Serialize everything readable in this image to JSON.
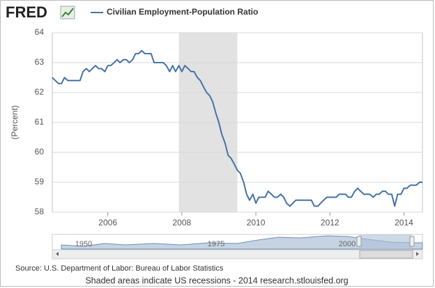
{
  "chart_data": {
    "type": "line",
    "logo": "FRED",
    "ylabel": "(Percent)",
    "source": "Source: U.S. Department of Labor: Bureau of Labor Statistics",
    "footer": "Shaded areas indicate US recessions - 2014 research.stlouisfed.org",
    "navigator_labels": [
      "1950",
      "1975",
      "2000"
    ],
    "xlim": [
      2004.5,
      2014.5
    ],
    "xticks": [
      2006,
      2008,
      2010,
      2012,
      2014
    ],
    "ylim": [
      58,
      64
    ],
    "yticks": [
      58,
      59,
      60,
      61,
      62,
      63,
      64
    ],
    "grid": true,
    "recessions": [
      {
        "start": 2007.92,
        "end": 2009.5
      }
    ],
    "x": [
      2004.5,
      2004.58,
      2004.67,
      2004.75,
      2004.83,
      2004.92,
      2005,
      2005.08,
      2005.17,
      2005.25,
      2005.33,
      2005.42,
      2005.5,
      2005.58,
      2005.67,
      2005.75,
      2005.83,
      2005.92,
      2006,
      2006.08,
      2006.17,
      2006.25,
      2006.33,
      2006.42,
      2006.5,
      2006.58,
      2006.67,
      2006.75,
      2006.83,
      2006.92,
      2007,
      2007.08,
      2007.17,
      2007.25,
      2007.33,
      2007.42,
      2007.5,
      2007.58,
      2007.67,
      2007.75,
      2007.83,
      2007.92,
      2008,
      2008.08,
      2008.17,
      2008.25,
      2008.33,
      2008.42,
      2008.5,
      2008.58,
      2008.67,
      2008.75,
      2008.83,
      2008.92,
      2009,
      2009.08,
      2009.17,
      2009.25,
      2009.33,
      2009.42,
      2009.5,
      2009.58,
      2009.67,
      2009.75,
      2009.83,
      2009.92,
      2010,
      2010.08,
      2010.17,
      2010.25,
      2010.33,
      2010.42,
      2010.5,
      2010.58,
      2010.67,
      2010.75,
      2010.83,
      2010.92,
      2011,
      2011.08,
      2011.17,
      2011.25,
      2011.33,
      2011.42,
      2011.5,
      2011.58,
      2011.67,
      2011.75,
      2011.83,
      2011.92,
      2012,
      2012.08,
      2012.17,
      2012.25,
      2012.33,
      2012.42,
      2012.5,
      2012.58,
      2012.67,
      2012.75,
      2012.83,
      2012.92,
      2013,
      2013.08,
      2013.17,
      2013.25,
      2013.33,
      2013.42,
      2013.5,
      2013.58,
      2013.67,
      2013.75,
      2013.83,
      2013.92,
      2014,
      2014.08,
      2014.17,
      2014.25,
      2014.33,
      2014.42,
      2014.5
    ],
    "series": [
      {
        "name": "Civilian Employment-Population Ratio",
        "color": "#4572a7",
        "values": [
          62.5,
          62.4,
          62.3,
          62.3,
          62.5,
          62.4,
          62.4,
          62.4,
          62.4,
          62.4,
          62.7,
          62.8,
          62.7,
          62.8,
          62.9,
          62.8,
          62.8,
          62.7,
          62.9,
          62.9,
          63.0,
          63.1,
          63.0,
          63.1,
          63.1,
          63.0,
          63.1,
          63.3,
          63.3,
          63.4,
          63.3,
          63.3,
          63.3,
          63.0,
          63.0,
          63.0,
          63.0,
          62.9,
          62.7,
          62.9,
          62.7,
          62.9,
          62.7,
          62.9,
          62.8,
          62.7,
          62.7,
          62.5,
          62.4,
          62.2,
          62.0,
          61.9,
          61.7,
          61.3,
          61.0,
          60.6,
          60.3,
          59.9,
          59.8,
          59.6,
          59.4,
          59.3,
          59.0,
          58.6,
          58.4,
          58.6,
          58.3,
          58.5,
          58.5,
          58.5,
          58.7,
          58.6,
          58.5,
          58.5,
          58.6,
          58.5,
          58.3,
          58.2,
          58.3,
          58.4,
          58.4,
          58.4,
          58.4,
          58.4,
          58.4,
          58.2,
          58.2,
          58.3,
          58.4,
          58.5,
          58.5,
          58.5,
          58.5,
          58.6,
          58.6,
          58.6,
          58.5,
          58.5,
          58.7,
          58.8,
          58.7,
          58.6,
          58.6,
          58.6,
          58.5,
          58.6,
          58.6,
          58.7,
          58.7,
          58.6,
          58.6,
          58.2,
          58.6,
          58.6,
          58.8,
          58.8,
          58.9,
          58.9,
          58.9,
          59.0,
          59.0
        ]
      }
    ]
  }
}
